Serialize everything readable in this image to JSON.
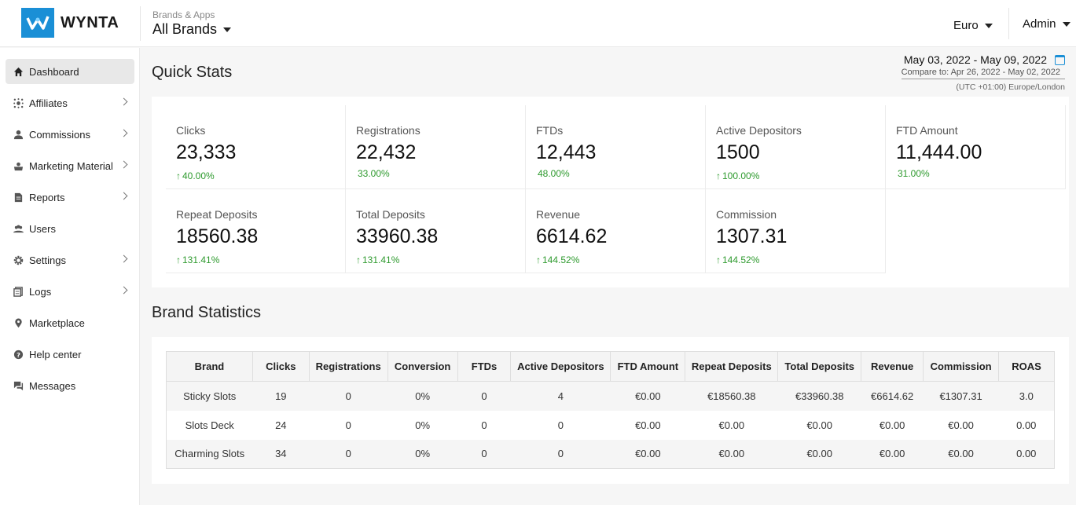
{
  "header": {
    "logo_text": "WYNTA",
    "brand_sub": "Brands & Apps",
    "brand_main": "All Brands",
    "currency": "Euro",
    "user": "Admin"
  },
  "sidebar": {
    "items": [
      {
        "label": "Dashboard",
        "icon": "home-icon"
      },
      {
        "label": "Affiliates",
        "icon": "affiliates-icon"
      },
      {
        "label": "Commissions",
        "icon": "commissions-icon"
      },
      {
        "label": "Marketing Material",
        "icon": "marketing-icon"
      },
      {
        "label": "Reports",
        "icon": "reports-icon"
      },
      {
        "label": "Users",
        "icon": "users-icon"
      },
      {
        "label": "Settings",
        "icon": "gear-icon"
      },
      {
        "label": "Logs",
        "icon": "logs-icon"
      },
      {
        "label": "Marketplace",
        "icon": "location-icon"
      },
      {
        "label": "Help center",
        "icon": "help-icon"
      },
      {
        "label": "Messages",
        "icon": "messages-icon"
      }
    ]
  },
  "quick_stats": {
    "title": "Quick Stats",
    "date_range": "May 03, 2022 - May 09, 2022",
    "compare": "Compare to: Apr 26, 2022 - May 02, 2022",
    "timezone": "(UTC +01:00) Europe/London",
    "stats": [
      {
        "label": "Clicks",
        "value": "23,333",
        "change": "40.00%",
        "arrow": "↑"
      },
      {
        "label": "Registrations",
        "value": "22,432",
        "change": "33.00%",
        "arrow": ""
      },
      {
        "label": "FTDs",
        "value": "12,443",
        "change": "48.00%",
        "arrow": ""
      },
      {
        "label": "Active Depositors",
        "value": "1500",
        "change": "100.00%",
        "arrow": "↑"
      },
      {
        "label": "FTD Amount",
        "value": "11,444.00",
        "change": "31.00%",
        "arrow": ""
      },
      {
        "label": "Repeat Deposits",
        "value": "18560.38",
        "change": "131.41%",
        "arrow": "↑"
      },
      {
        "label": "Total Deposits",
        "value": "33960.38",
        "change": "131.41%",
        "arrow": "↑"
      },
      {
        "label": "Revenue",
        "value": "6614.62",
        "change": "144.52%",
        "arrow": "↑"
      },
      {
        "label": "Commission",
        "value": "1307.31",
        "change": "144.52%",
        "arrow": "↑"
      }
    ]
  },
  "brand_statistics": {
    "title": "Brand Statistics",
    "columns": [
      "Brand",
      "Clicks",
      "Registrations",
      "Conversion",
      "FTDs",
      "Active Depositors",
      "FTD Amount",
      "Repeat Deposits",
      "Total Deposits",
      "Revenue",
      "Commission",
      "ROAS"
    ],
    "rows": [
      [
        "Sticky Slots",
        "19",
        "0",
        "0%",
        "0",
        "4",
        "€0.00",
        "€18560.38",
        "€33960.38",
        "€6614.62",
        "€1307.31",
        "3.0"
      ],
      [
        "Slots Deck",
        "24",
        "0",
        "0%",
        "0",
        "0",
        "€0.00",
        "€0.00",
        "€0.00",
        "€0.00",
        "€0.00",
        "0.00"
      ],
      [
        "Charming Slots",
        "34",
        "0",
        "0%",
        "0",
        "0",
        "€0.00",
        "€0.00",
        "€0.00",
        "€0.00",
        "€0.00",
        "0.00"
      ]
    ]
  },
  "colors": {
    "accent": "#1a8fd6",
    "positive": "#2e9a2e"
  }
}
